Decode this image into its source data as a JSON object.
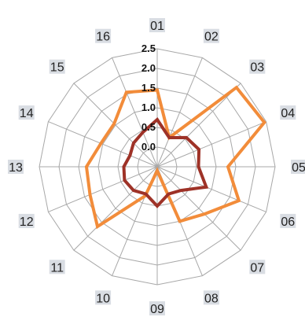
{
  "chart_data": {
    "type": "radar",
    "categories": [
      "01",
      "02",
      "03",
      "04",
      "05",
      "06",
      "07",
      "08",
      "09",
      "10",
      "11",
      "12",
      "13",
      "14",
      "15",
      "16"
    ],
    "radial_ticks": [
      "0.0",
      "0.5",
      "1.0",
      "1.5",
      "2.0",
      "2.5"
    ],
    "rlim": [
      -0.5,
      2.5
    ],
    "grid": true,
    "series": [
      {
        "color": "#f28c3a",
        "values": [
          1.45,
          0.3,
          2.35,
          2.45,
          1.3,
          1.75,
          1.2,
          1.0,
          -0.4,
          0.3,
          1.65,
          1.35,
          1.3,
          1.05,
          1.05,
          1.55
        ]
      },
      {
        "color": "#9e3227",
        "values": [
          0.7,
          0.3,
          0.55,
          0.65,
          0.55,
          0.85,
          0.35,
          0.25,
          0.5,
          0.25,
          0.35,
          0.4,
          0.35,
          0.25,
          0.35,
          0.45
        ]
      }
    ],
    "colors": {
      "grid": "#a8a8a8",
      "label_background": "#d9dde3"
    }
  }
}
